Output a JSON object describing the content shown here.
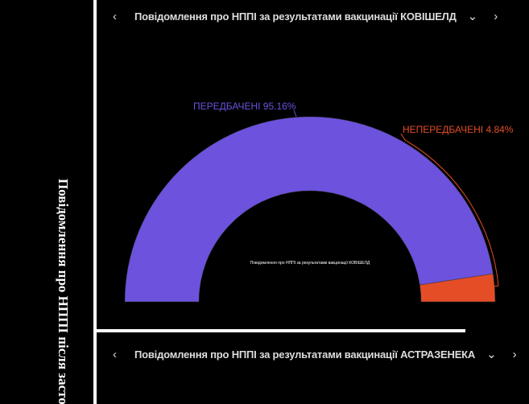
{
  "sidebar": {
    "title": "Повідомлення про НППІ після засто"
  },
  "panel1": {
    "title": "Повідомлення про НППІ за результатами вакцинації КОВІШЕЛД",
    "prev": "‹",
    "next": "›",
    "dropdown": "⌄"
  },
  "panel2": {
    "title": "Повідомлення про НППІ за результатами вакцинації АСТРАЗЕНЕКА",
    "prev": "‹",
    "next": "›",
    "dropdown": "⌄"
  },
  "chart_data": {
    "type": "pie",
    "variant": "half-donut",
    "center_label": "Повідомлення про НППІ за результатами вакцинації КОВІШЕЛД",
    "categories": [
      "ПЕРЕДБАЧЕНІ",
      "НЕПЕРЕДБАЧЕНІ"
    ],
    "values": [
      95.16,
      4.84
    ],
    "labels": [
      "ПЕРЕДБАЧЕНІ 95.16%",
      "НЕПЕРЕДБАЧЕНІ 4.84%"
    ],
    "colors": [
      "#6c52dc",
      "#e44d26"
    ]
  }
}
